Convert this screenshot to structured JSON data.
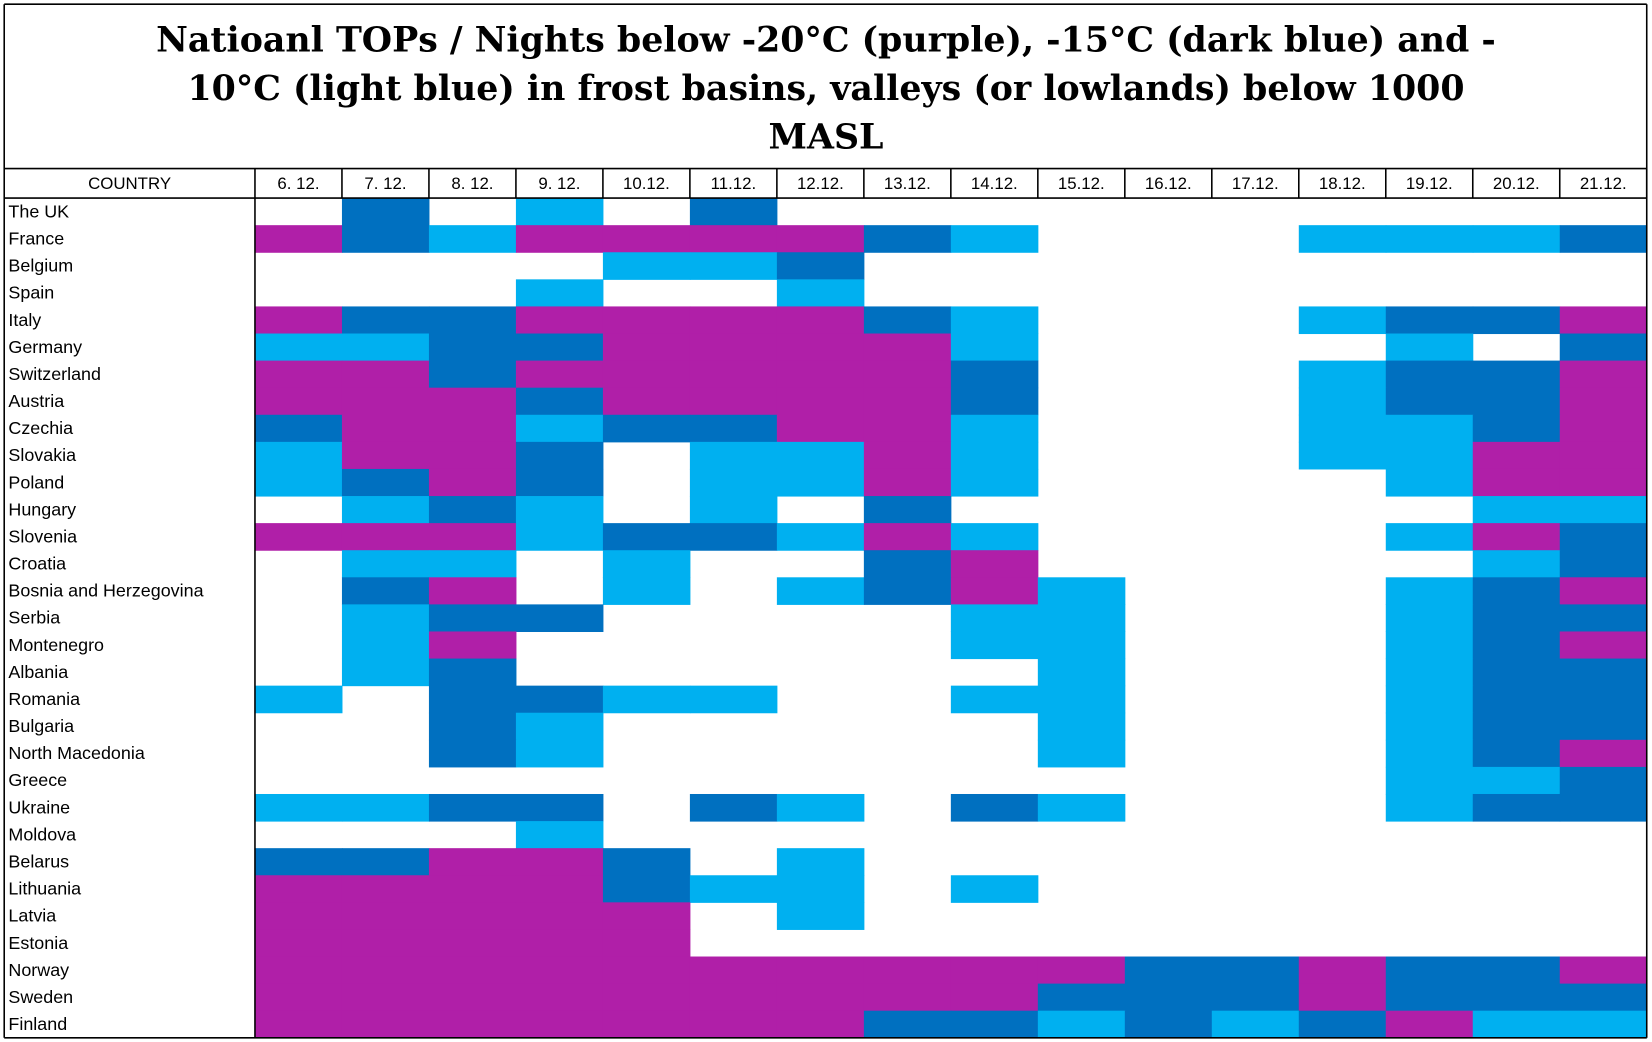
{
  "title_lines": [
    "Natioanl TOPs / Nights below -20°C (purple), -15°C (dark blue) and -",
    "10°C (light blue) in frost basins, valleys (or lowlands) below 1000",
    "MASL"
  ],
  "table": {
    "columns": [
      "COUNTRY",
      "6. 12.",
      "7. 12.",
      "8. 12.",
      "9. 12.",
      "10.12.",
      "11.12.",
      "12.12.",
      "13.12.",
      "14.12.",
      "15.12.",
      "16.12.",
      "17.12.",
      "18.12.",
      "19.12.",
      "20.12.",
      "21.12."
    ],
    "rows": [
      {
        "country": "The UK",
        "cells": [
          null,
          "#0070c0",
          null,
          "#00b0f0",
          null,
          "#0070c0",
          null,
          null,
          null,
          null,
          null,
          null,
          null,
          null,
          null,
          null
        ]
      },
      {
        "country": "France",
        "cells": [
          "#b01fa8",
          "#0070c0",
          "#00b0f0",
          "#b01fa8",
          "#b01fa8",
          "#b01fa8",
          "#b01fa8",
          "#0070c0",
          "#00b0f0",
          null,
          null,
          null,
          "#00b0f0",
          "#00b0f0",
          "#00b0f0",
          "#0070c0"
        ]
      },
      {
        "country": "Belgium",
        "cells": [
          null,
          null,
          null,
          null,
          "#00b0f0",
          "#00b0f0",
          "#0070c0",
          null,
          null,
          null,
          null,
          null,
          null,
          null,
          null,
          null
        ]
      },
      {
        "country": "Spain",
        "cells": [
          null,
          null,
          null,
          "#00b0f0",
          null,
          null,
          "#00b0f0",
          null,
          null,
          null,
          null,
          null,
          null,
          null,
          null,
          null
        ]
      },
      {
        "country": "Italy",
        "cells": [
          "#b01fa8",
          "#0070c0",
          "#0070c0",
          "#b01fa8",
          "#b01fa8",
          "#b01fa8",
          "#b01fa8",
          "#0070c0",
          "#00b0f0",
          null,
          null,
          null,
          "#00b0f0",
          "#0070c0",
          "#0070c0",
          "#b01fa8"
        ]
      },
      {
        "country": "Germany",
        "cells": [
          "#00b0f0",
          "#00b0f0",
          "#0070c0",
          "#0070c0",
          "#b01fa8",
          "#b01fa8",
          "#b01fa8",
          "#b01fa8",
          "#00b0f0",
          null,
          null,
          null,
          null,
          "#00b0f0",
          null,
          "#0070c0"
        ]
      },
      {
        "country": "Switzerland",
        "cells": [
          "#b01fa8",
          "#b01fa8",
          "#0070c0",
          "#b01fa8",
          "#b01fa8",
          "#b01fa8",
          "#b01fa8",
          "#b01fa8",
          "#0070c0",
          null,
          null,
          null,
          "#00b0f0",
          "#0070c0",
          "#0070c0",
          "#b01fa8"
        ]
      },
      {
        "country": "Austria",
        "cells": [
          "#b01fa8",
          "#b01fa8",
          "#b01fa8",
          "#0070c0",
          "#b01fa8",
          "#b01fa8",
          "#b01fa8",
          "#b01fa8",
          "#0070c0",
          null,
          null,
          null,
          "#00b0f0",
          "#0070c0",
          "#0070c0",
          "#b01fa8"
        ]
      },
      {
        "country": "Czechia",
        "cells": [
          "#0070c0",
          "#b01fa8",
          "#b01fa8",
          "#00b0f0",
          "#0070c0",
          "#0070c0",
          "#b01fa8",
          "#b01fa8",
          "#00b0f0",
          null,
          null,
          null,
          "#00b0f0",
          "#00b0f0",
          "#0070c0",
          "#b01fa8"
        ]
      },
      {
        "country": "Slovakia",
        "cells": [
          "#00b0f0",
          "#b01fa8",
          "#b01fa8",
          "#0070c0",
          null,
          "#00b0f0",
          "#00b0f0",
          "#b01fa8",
          "#00b0f0",
          null,
          null,
          null,
          "#00b0f0",
          "#00b0f0",
          "#b01fa8",
          "#b01fa8"
        ]
      },
      {
        "country": "Poland",
        "cells": [
          "#00b0f0",
          "#0070c0",
          "#b01fa8",
          "#0070c0",
          null,
          "#00b0f0",
          "#00b0f0",
          "#b01fa8",
          "#00b0f0",
          null,
          null,
          null,
          null,
          "#00b0f0",
          "#b01fa8",
          "#b01fa8"
        ]
      },
      {
        "country": "Hungary",
        "cells": [
          null,
          "#00b0f0",
          "#0070c0",
          "#00b0f0",
          null,
          "#00b0f0",
          null,
          "#0070c0",
          null,
          null,
          null,
          null,
          null,
          null,
          "#00b0f0",
          "#00b0f0"
        ]
      },
      {
        "country": "Slovenia",
        "cells": [
          "#b01fa8",
          "#b01fa8",
          "#b01fa8",
          "#00b0f0",
          "#0070c0",
          "#0070c0",
          "#00b0f0",
          "#b01fa8",
          "#00b0f0",
          null,
          null,
          null,
          null,
          "#00b0f0",
          "#b01fa8",
          "#0070c0"
        ]
      },
      {
        "country": "Croatia",
        "cells": [
          null,
          "#00b0f0",
          "#00b0f0",
          null,
          "#00b0f0",
          null,
          null,
          "#0070c0",
          "#b01fa8",
          null,
          null,
          null,
          null,
          null,
          "#00b0f0",
          "#0070c0"
        ]
      },
      {
        "country": "Bosnia and Herzegovina",
        "cells": [
          null,
          "#0070c0",
          "#b01fa8",
          null,
          "#00b0f0",
          null,
          "#00b0f0",
          "#0070c0",
          "#b01fa8",
          "#00b0f0",
          null,
          null,
          null,
          "#00b0f0",
          "#0070c0",
          "#b01fa8"
        ]
      },
      {
        "country": "Serbia",
        "cells": [
          null,
          "#00b0f0",
          "#0070c0",
          "#0070c0",
          null,
          null,
          null,
          null,
          "#00b0f0",
          "#00b0f0",
          null,
          null,
          null,
          "#00b0f0",
          "#0070c0",
          "#0070c0"
        ]
      },
      {
        "country": "Montenegro",
        "cells": [
          null,
          "#00b0f0",
          "#b01fa8",
          null,
          null,
          null,
          null,
          null,
          "#00b0f0",
          "#00b0f0",
          null,
          null,
          null,
          "#00b0f0",
          "#0070c0",
          "#b01fa8"
        ]
      },
      {
        "country": "Albania",
        "cells": [
          null,
          "#00b0f0",
          "#0070c0",
          null,
          null,
          null,
          null,
          null,
          null,
          "#00b0f0",
          null,
          null,
          null,
          "#00b0f0",
          "#0070c0",
          "#0070c0"
        ]
      },
      {
        "country": "Romania",
        "cells": [
          "#00b0f0",
          null,
          "#0070c0",
          "#0070c0",
          "#00b0f0",
          "#00b0f0",
          null,
          null,
          "#00b0f0",
          "#00b0f0",
          null,
          null,
          null,
          "#00b0f0",
          "#0070c0",
          "#0070c0"
        ]
      },
      {
        "country": "Bulgaria",
        "cells": [
          null,
          null,
          "#0070c0",
          "#00b0f0",
          null,
          null,
          null,
          null,
          null,
          "#00b0f0",
          null,
          null,
          null,
          "#00b0f0",
          "#0070c0",
          "#0070c0"
        ]
      },
      {
        "country": "North Macedonia",
        "cells": [
          null,
          null,
          "#0070c0",
          "#00b0f0",
          null,
          null,
          null,
          null,
          null,
          "#00b0f0",
          null,
          null,
          null,
          "#00b0f0",
          "#0070c0",
          "#b01fa8"
        ]
      },
      {
        "country": "Greece",
        "cells": [
          null,
          null,
          null,
          null,
          null,
          null,
          null,
          null,
          null,
          null,
          null,
          null,
          null,
          "#00b0f0",
          "#00b0f0",
          "#0070c0"
        ]
      },
      {
        "country": "Ukraine",
        "cells": [
          "#00b0f0",
          "#00b0f0",
          "#0070c0",
          "#0070c0",
          null,
          "#0070c0",
          "#00b0f0",
          null,
          "#0070c0",
          "#00b0f0",
          null,
          null,
          null,
          "#00b0f0",
          "#0070c0",
          "#0070c0"
        ]
      },
      {
        "country": "Moldova",
        "cells": [
          null,
          null,
          null,
          "#00b0f0",
          null,
          null,
          null,
          null,
          null,
          null,
          null,
          null,
          null,
          null,
          null,
          null
        ]
      },
      {
        "country": "Belarus",
        "cells": [
          "#0070c0",
          "#0070c0",
          "#b01fa8",
          "#b01fa8",
          "#0070c0",
          null,
          "#00b0f0",
          null,
          null,
          null,
          null,
          null,
          null,
          null,
          null,
          null
        ]
      },
      {
        "country": "Lithuania",
        "cells": [
          "#b01fa8",
          "#b01fa8",
          "#b01fa8",
          "#b01fa8",
          "#0070c0",
          "#00b0f0",
          "#00b0f0",
          null,
          "#00b0f0",
          null,
          null,
          null,
          null,
          null,
          null,
          null
        ]
      },
      {
        "country": "Latvia",
        "cells": [
          "#b01fa8",
          "#b01fa8",
          "#b01fa8",
          "#b01fa8",
          "#b01fa8",
          null,
          "#00b0f0",
          null,
          null,
          null,
          null,
          null,
          null,
          null,
          null,
          null
        ]
      },
      {
        "country": "Estonia",
        "cells": [
          "#b01fa8",
          "#b01fa8",
          "#b01fa8",
          "#b01fa8",
          "#b01fa8",
          null,
          null,
          null,
          null,
          null,
          null,
          null,
          null,
          null,
          null,
          null
        ]
      },
      {
        "country": "Norway",
        "cells": [
          "#b01fa8",
          "#b01fa8",
          "#b01fa8",
          "#b01fa8",
          "#b01fa8",
          "#b01fa8",
          "#b01fa8",
          "#b01fa8",
          "#b01fa8",
          "#b01fa8",
          "#0070c0",
          "#0070c0",
          "#b01fa8",
          "#0070c0",
          "#0070c0",
          "#b01fa8"
        ]
      },
      {
        "country": "Sweden",
        "cells": [
          "#b01fa8",
          "#b01fa8",
          "#b01fa8",
          "#b01fa8",
          "#b01fa8",
          "#b01fa8",
          "#b01fa8",
          "#b01fa8",
          "#b01fa8",
          "#0070c0",
          "#0070c0",
          "#0070c0",
          "#b01fa8",
          "#0070c0",
          "#0070c0",
          "#0070c0"
        ]
      },
      {
        "country": "Finland",
        "cells": [
          "#b01fa8",
          "#b01fa8",
          "#b01fa8",
          "#b01fa8",
          "#b01fa8",
          "#b01fa8",
          "#b01fa8",
          "#0070c0",
          "#0070c0",
          "#00b0f0",
          "#0070c0",
          "#00b0f0",
          "#0070c0",
          "#b01fa8",
          "#00b0f0",
          "#00b0f0"
        ]
      }
    ]
  }
}
